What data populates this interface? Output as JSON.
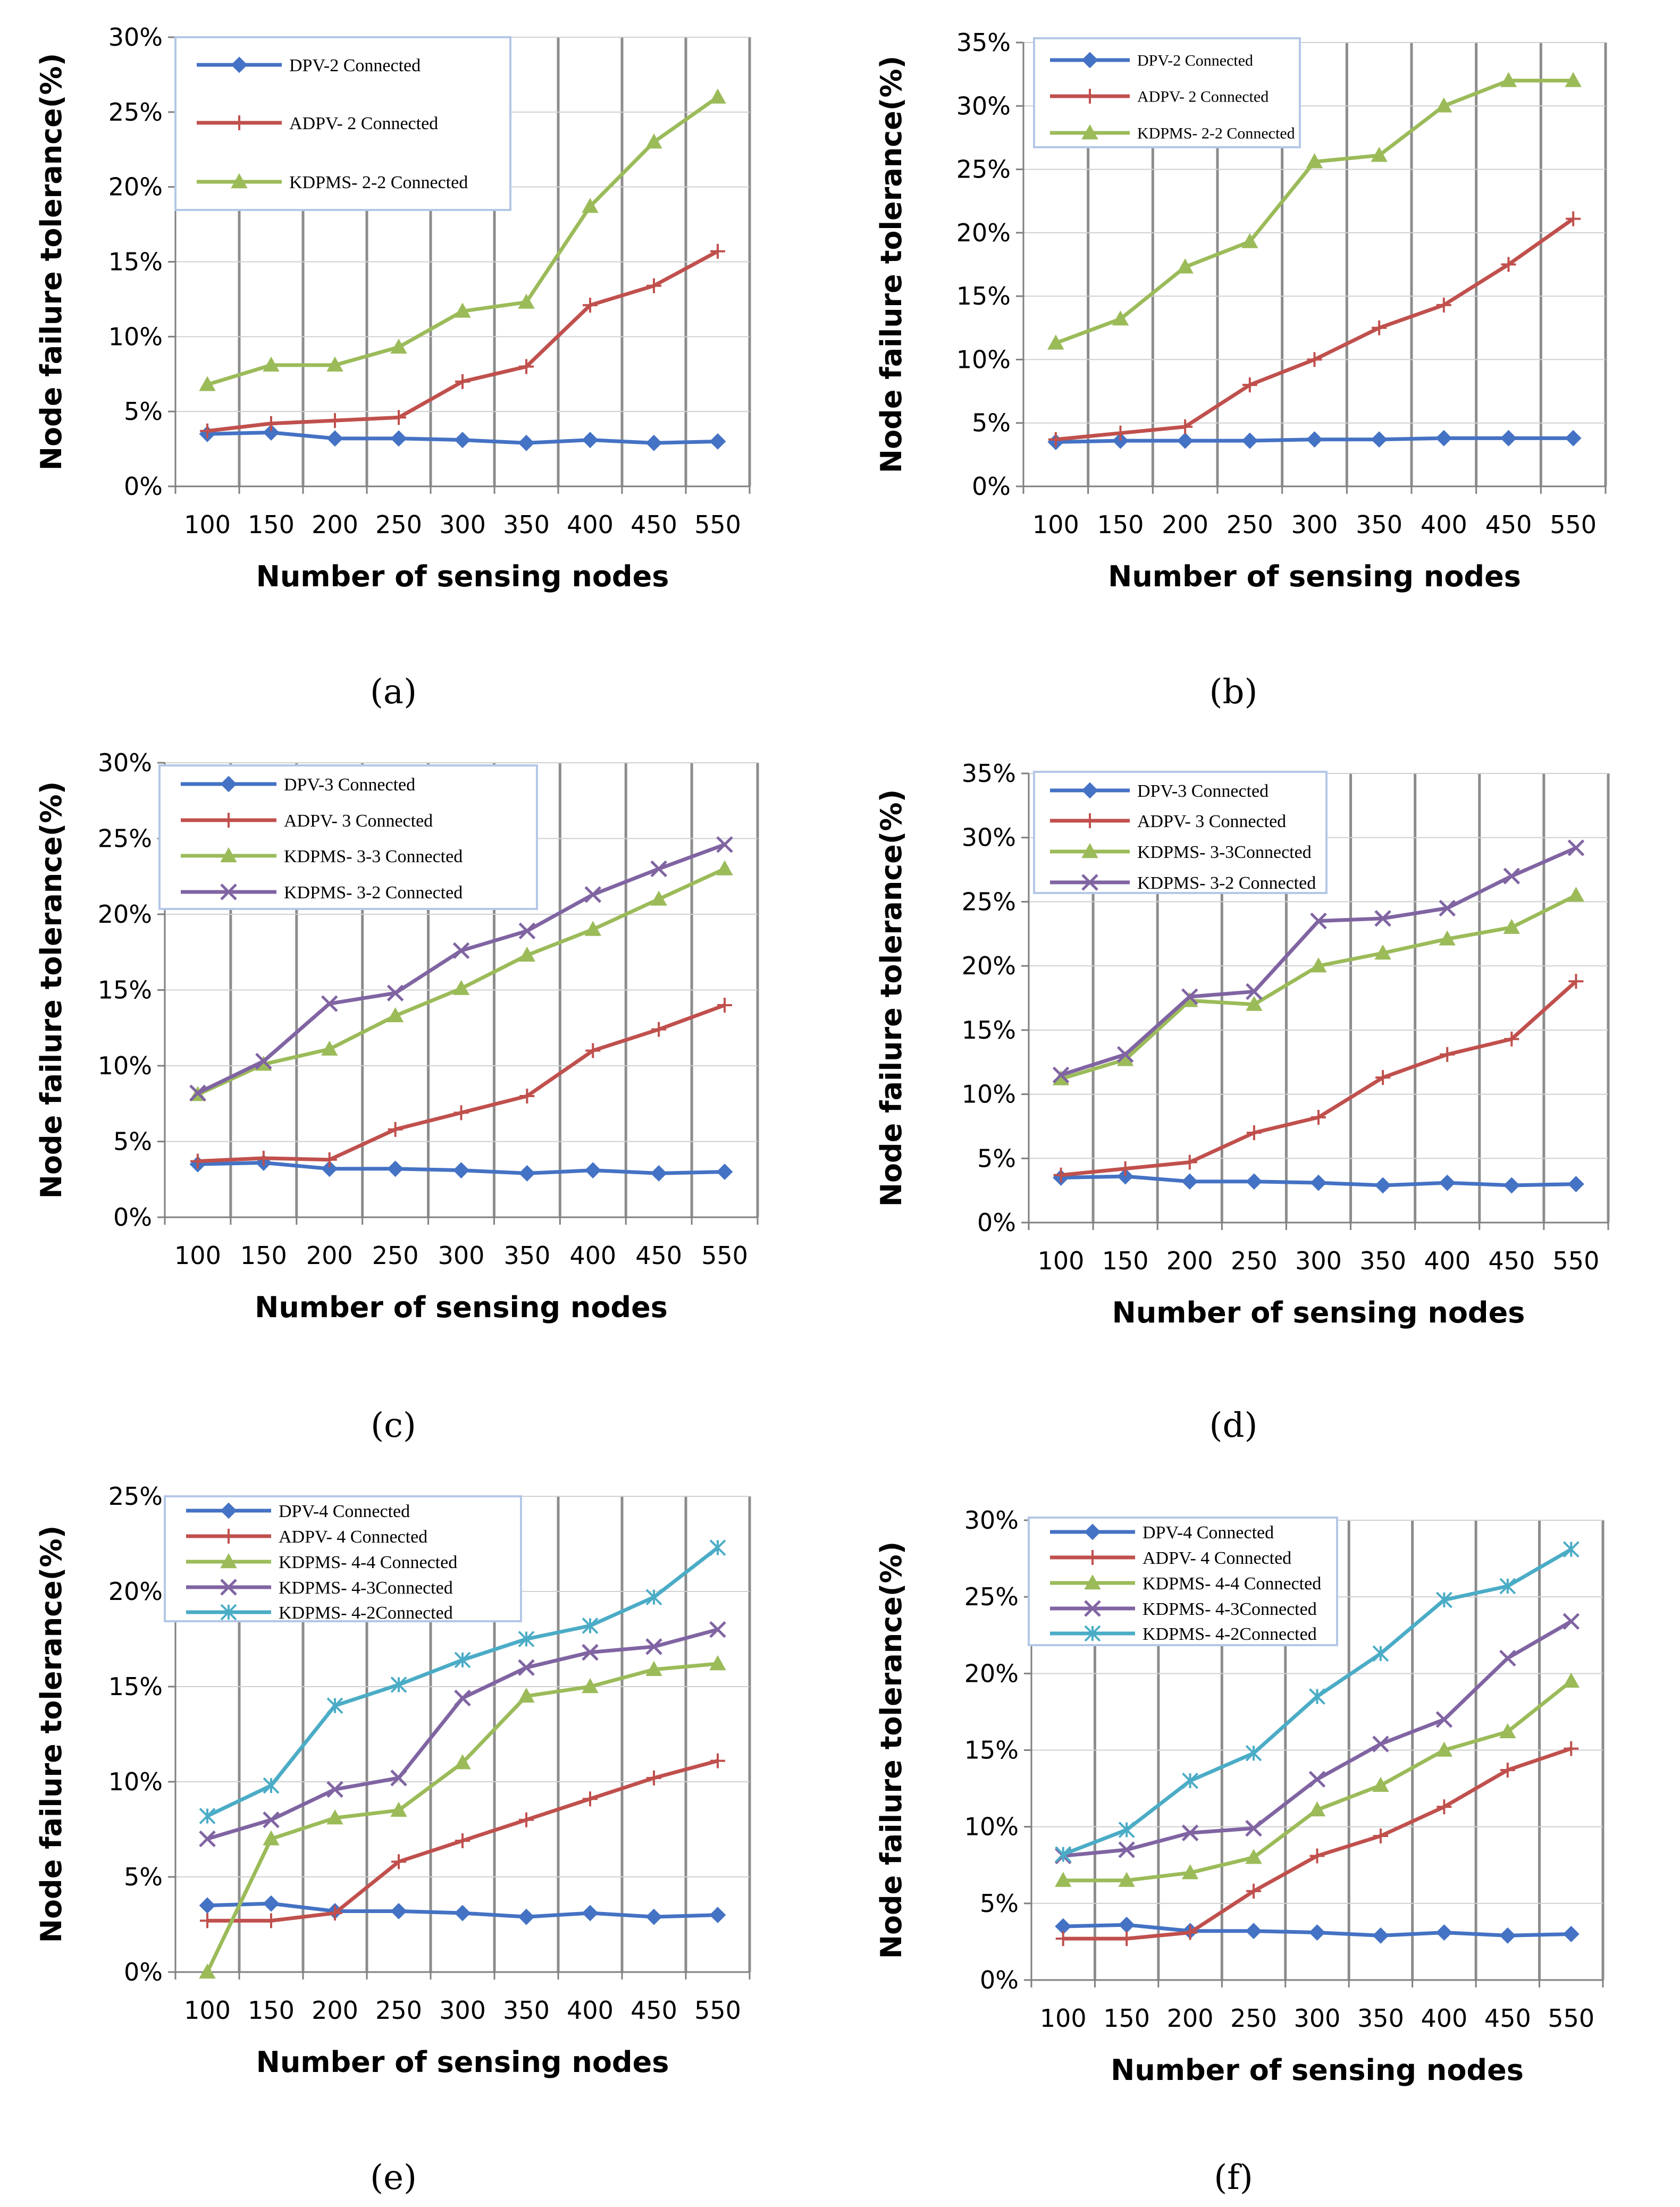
{
  "chart_data": [
    {
      "panel": "a",
      "caption": "(a)",
      "type": "line",
      "xlabel": "Number of sensing nodes",
      "ylabel": "Node failure tolerance(%)",
      "categories": [
        "100",
        "150",
        "200",
        "250",
        "300",
        "350",
        "400",
        "450",
        "550"
      ],
      "ylim": [
        0,
        30
      ],
      "ystep": 5,
      "yticks": [
        "0%",
        "5%",
        "10%",
        "15%",
        "20%",
        "25%",
        "30%"
      ],
      "series": [
        {
          "name": "DPV-2 Connected",
          "marker": "diamond",
          "color": "#4472C4",
          "values": [
            3.5,
            3.6,
            3.2,
            3.2,
            3.1,
            2.9,
            3.1,
            2.9,
            3.0
          ]
        },
        {
          "name": "ADPV- 2 Connected",
          "marker": "plus",
          "color": "#C0504D",
          "values": [
            3.7,
            4.2,
            4.4,
            4.6,
            7.0,
            8.0,
            12.1,
            13.4,
            15.7
          ]
        },
        {
          "name": "KDPMS- 2-2 Connected",
          "marker": "triangle",
          "color": "#9BBB59",
          "values": [
            6.8,
            8.1,
            8.1,
            9.3,
            11.7,
            12.3,
            18.7,
            23.0,
            26.0
          ]
        }
      ]
    },
    {
      "panel": "b",
      "caption": "(b)",
      "type": "line",
      "xlabel": "Number of sensing nodes",
      "ylabel": "Node failure tolerance(%)",
      "categories": [
        "100",
        "150",
        "200",
        "250",
        "300",
        "350",
        "400",
        "450",
        "550"
      ],
      "ylim": [
        0,
        35
      ],
      "ystep": 5,
      "yticks": [
        "0%",
        "5%",
        "10%",
        "15%",
        "20%",
        "25%",
        "30%",
        "35%"
      ],
      "series": [
        {
          "name": "DPV-2 Connected",
          "marker": "diamond",
          "color": "#4472C4",
          "values": [
            3.5,
            3.6,
            3.6,
            3.6,
            3.7,
            3.7,
            3.8,
            3.8,
            3.8
          ]
        },
        {
          "name": "ADPV- 2 Connected",
          "marker": "plus",
          "color": "#C0504D",
          "values": [
            3.7,
            4.2,
            4.7,
            8.0,
            10.0,
            12.5,
            14.3,
            17.5,
            21.1
          ]
        },
        {
          "name": "KDPMS- 2-2 Connected",
          "marker": "triangle",
          "color": "#9BBB59",
          "values": [
            11.3,
            13.2,
            17.3,
            19.3,
            25.6,
            26.1,
            30.0,
            32.0,
            32.0
          ]
        }
      ]
    },
    {
      "panel": "c",
      "caption": "(c)",
      "type": "line",
      "xlabel": "Number of sensing nodes",
      "ylabel": "Node failure tolerance(%)",
      "categories": [
        "100",
        "150",
        "200",
        "250",
        "300",
        "350",
        "400",
        "450",
        "550"
      ],
      "ylim": [
        0,
        30
      ],
      "ystep": 5,
      "yticks": [
        "0%",
        "5%",
        "10%",
        "15%",
        "20%",
        "25%",
        "30%"
      ],
      "series": [
        {
          "name": "DPV-3 Connected",
          "marker": "diamond",
          "color": "#4472C4",
          "values": [
            3.5,
            3.6,
            3.2,
            3.2,
            3.1,
            2.9,
            3.1,
            2.9,
            3.0
          ]
        },
        {
          "name": "ADPV- 3 Connected",
          "marker": "plus",
          "color": "#C0504D",
          "values": [
            3.7,
            3.9,
            3.8,
            5.8,
            6.9,
            8.0,
            11.0,
            12.4,
            14.0
          ]
        },
        {
          "name": "KDPMS- 3-3 Connected",
          "marker": "triangle",
          "color": "#9BBB59",
          "values": [
            8.1,
            10.1,
            11.1,
            13.3,
            15.1,
            17.3,
            19.0,
            21.0,
            23.0
          ]
        },
        {
          "name": "KDPMS- 3-2 Connected",
          "marker": "x",
          "color": "#8064A2",
          "values": [
            8.2,
            10.3,
            14.1,
            14.8,
            17.6,
            18.9,
            21.3,
            23.0,
            24.6
          ]
        }
      ]
    },
    {
      "panel": "d",
      "caption": "(d)",
      "type": "line",
      "xlabel": "Number of sensing nodes",
      "ylabel": "Node failure tolerance(%)",
      "categories": [
        "100",
        "150",
        "200",
        "250",
        "300",
        "350",
        "400",
        "450",
        "550"
      ],
      "ylim": [
        0,
        35
      ],
      "ystep": 5,
      "yticks": [
        "0%",
        "5%",
        "10%",
        "15%",
        "20%",
        "25%",
        "30%",
        "35%"
      ],
      "series": [
        {
          "name": "DPV-3 Connected",
          "marker": "diamond",
          "color": "#4472C4",
          "values": [
            3.5,
            3.6,
            3.2,
            3.2,
            3.1,
            2.9,
            3.1,
            2.9,
            3.0
          ]
        },
        {
          "name": "ADPV- 3 Connected",
          "marker": "plus",
          "color": "#C0504D",
          "values": [
            3.7,
            4.2,
            4.7,
            7.0,
            8.2,
            11.3,
            13.1,
            14.3,
            18.8
          ]
        },
        {
          "name": "KDPMS- 3-3Connected",
          "marker": "triangle",
          "color": "#9BBB59",
          "values": [
            11.2,
            12.7,
            17.3,
            17.0,
            20.0,
            21.0,
            22.1,
            23.0,
            25.5
          ]
        },
        {
          "name": "KDPMS- 3-2 Connected",
          "marker": "x",
          "color": "#8064A2",
          "values": [
            11.5,
            13.1,
            17.6,
            18.0,
            23.5,
            23.7,
            24.5,
            27.0,
            29.2
          ]
        }
      ]
    },
    {
      "panel": "e",
      "caption": "(e)",
      "type": "line",
      "xlabel": "Number of sensing nodes",
      "ylabel": "Node failure tolerance(%)",
      "categories": [
        "100",
        "150",
        "200",
        "250",
        "300",
        "350",
        "400",
        "450",
        "550"
      ],
      "ylim": [
        0,
        25
      ],
      "ystep": 5,
      "yticks": [
        "0%",
        "5%",
        "10%",
        "15%",
        "20%",
        "25%"
      ],
      "series": [
        {
          "name": "DPV-4 Connected",
          "marker": "diamond",
          "color": "#4472C4",
          "values": [
            3.5,
            3.6,
            3.2,
            3.2,
            3.1,
            2.9,
            3.1,
            2.9,
            3.0
          ]
        },
        {
          "name": "ADPV- 4 Connected",
          "marker": "plus",
          "color": "#C0504D",
          "values": [
            2.7,
            2.7,
            3.1,
            5.8,
            6.9,
            8.0,
            9.1,
            10.2,
            11.1
          ]
        },
        {
          "name": "KDPMS- 4-4 Connected",
          "marker": "triangle",
          "color": "#9BBB59",
          "values": [
            0.0,
            7.0,
            8.1,
            8.5,
            11.0,
            14.5,
            15.0,
            15.9,
            16.2
          ]
        },
        {
          "name": "KDPMS- 4-3Connected",
          "marker": "x",
          "color": "#8064A2",
          "values": [
            7.0,
            8.0,
            9.6,
            10.2,
            14.4,
            16.0,
            16.8,
            17.1,
            18.0
          ]
        },
        {
          "name": "KDPMS- 4-2Connected",
          "marker": "star",
          "color": "#4BACC6",
          "values": [
            8.2,
            9.8,
            14.0,
            15.1,
            16.4,
            17.5,
            18.2,
            19.7,
            22.3
          ]
        }
      ]
    },
    {
      "panel": "f",
      "caption": "(f)",
      "type": "line",
      "xlabel": "Number of sensing nodes",
      "ylabel": "Node failure tolerance(%)",
      "categories": [
        "100",
        "150",
        "200",
        "250",
        "300",
        "350",
        "400",
        "450",
        "550"
      ],
      "ylim": [
        0,
        30
      ],
      "ystep": 5,
      "yticks": [
        "0%",
        "5%",
        "10%",
        "15%",
        "20%",
        "25%",
        "30%"
      ],
      "series": [
        {
          "name": "DPV-4 Connected",
          "marker": "diamond",
          "color": "#4472C4",
          "values": [
            3.5,
            3.6,
            3.2,
            3.2,
            3.1,
            2.9,
            3.1,
            2.9,
            3.0
          ]
        },
        {
          "name": "ADPV- 4 Connected",
          "marker": "plus",
          "color": "#C0504D",
          "values": [
            2.7,
            2.7,
            3.1,
            5.8,
            8.1,
            9.4,
            11.3,
            13.7,
            15.1
          ]
        },
        {
          "name": "KDPMS- 4-4 Connected",
          "marker": "triangle",
          "color": "#9BBB59",
          "values": [
            6.5,
            6.5,
            7.0,
            8.0,
            11.1,
            12.7,
            15.0,
            16.2,
            19.5
          ]
        },
        {
          "name": "KDPMS- 4-3Connected",
          "marker": "x",
          "color": "#8064A2",
          "values": [
            8.1,
            8.5,
            9.6,
            9.9,
            13.1,
            15.4,
            17.0,
            21.0,
            23.4
          ]
        },
        {
          "name": "KDPMS- 4-2Connected",
          "marker": "star",
          "color": "#4BACC6",
          "values": [
            8.2,
            9.8,
            13.0,
            14.8,
            18.5,
            21.3,
            24.8,
            25.7,
            28.1
          ]
        }
      ]
    }
  ]
}
